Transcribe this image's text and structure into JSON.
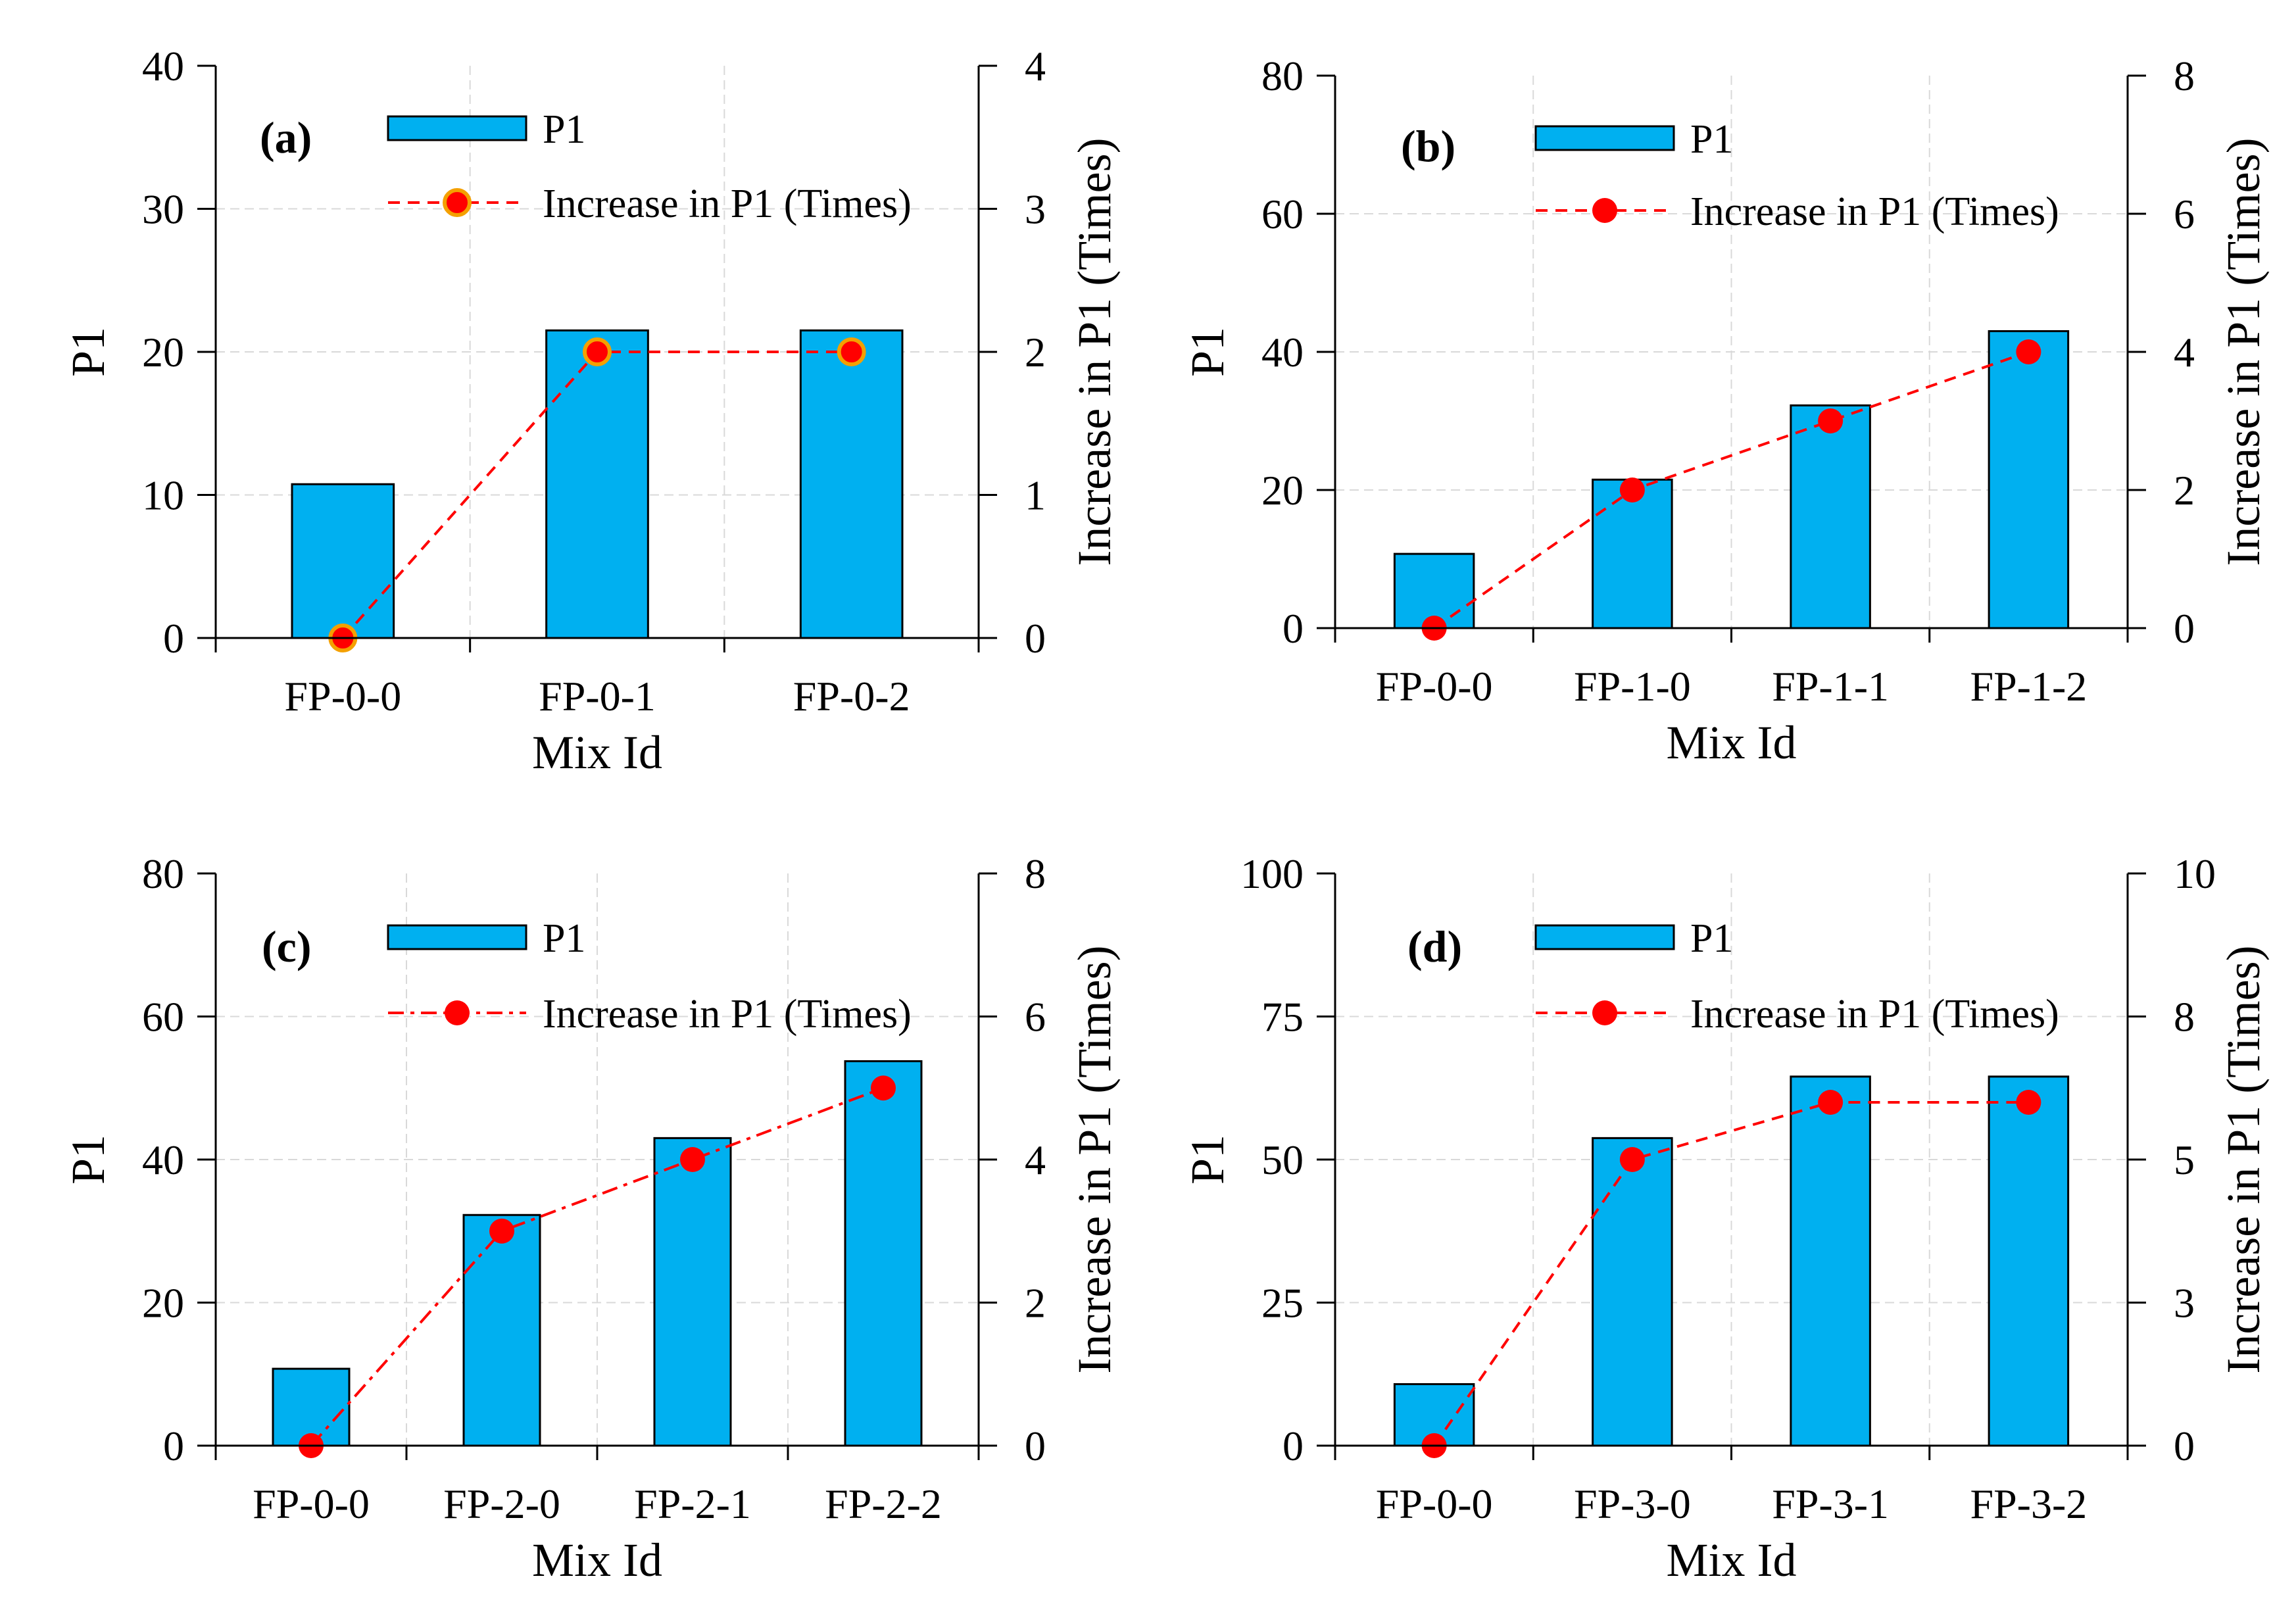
{
  "colors": {
    "bar_fill": "#00b0f0",
    "bar_stroke": "#000000",
    "line": "#ff0000",
    "marker": "#ff0000",
    "marker_edge_a": "#f4a000",
    "grid": "#d9d9d9"
  },
  "chart_data": [
    {
      "type": "bar",
      "panel_label": "(a)",
      "categories": [
        "FP-0-0",
        "FP-0-1",
        "FP-0-2"
      ],
      "series": [
        {
          "name": "P1",
          "kind": "bar",
          "axis": "left",
          "values": [
            10.75,
            21.5,
            21.5
          ]
        },
        {
          "name": "Increase in P1 (Times)",
          "kind": "line",
          "axis": "right",
          "style": "dashed",
          "values": [
            0,
            2,
            2
          ]
        }
      ],
      "xlabel": "Mix Id",
      "ylabel": "P1",
      "y2label": "Increase in P1 (Times)",
      "ylim": [
        0,
        40
      ],
      "yticks": [
        "0",
        "10",
        "20",
        "30",
        "40"
      ],
      "y2lim": [
        0,
        4
      ],
      "y2ticks": [
        "0",
        "1",
        "2",
        "3",
        "4"
      ],
      "legend": [
        "P1",
        "Increase in P1 (Times)"
      ]
    },
    {
      "type": "bar",
      "panel_label": "(b)",
      "categories": [
        "FP-0-0",
        "FP-1-0",
        "FP-1-1",
        "FP-1-2"
      ],
      "series": [
        {
          "name": "P1",
          "kind": "bar",
          "axis": "left",
          "values": [
            10.75,
            21.5,
            32.25,
            43
          ]
        },
        {
          "name": "Increase in P1 (Times)",
          "kind": "line",
          "axis": "right",
          "style": "dashed",
          "values": [
            0,
            2,
            3,
            4
          ]
        }
      ],
      "xlabel": "Mix Id",
      "ylabel": "P1",
      "y2label": "Increase in P1 (Times)",
      "ylim": [
        0,
        80
      ],
      "yticks": [
        "0",
        "20",
        "40",
        "60",
        "80"
      ],
      "y2lim": [
        0,
        8
      ],
      "y2ticks": [
        "0",
        "2",
        "4",
        "6",
        "8"
      ],
      "legend": [
        "P1",
        "Increase in P1 (Times)"
      ]
    },
    {
      "type": "bar",
      "panel_label": "(c)",
      "categories": [
        "FP-0-0",
        "FP-2-0",
        "FP-2-1",
        "FP-2-2"
      ],
      "series": [
        {
          "name": "P1",
          "kind": "bar",
          "axis": "left",
          "values": [
            10.75,
            32.25,
            43,
            53.75
          ]
        },
        {
          "name": "Increase in P1 (Times)",
          "kind": "line",
          "axis": "right",
          "style": "dash-dot",
          "values": [
            0,
            3,
            4,
            5
          ]
        }
      ],
      "xlabel": "Mix Id",
      "ylabel": "P1",
      "y2label": "Increase in P1 (Times)",
      "ylim": [
        0,
        80
      ],
      "yticks": [
        "0",
        "20",
        "40",
        "60",
        "80"
      ],
      "y2lim": [
        0,
        8
      ],
      "y2ticks": [
        "0",
        "2",
        "4",
        "6",
        "8"
      ],
      "legend": [
        "P1",
        "Increase in P1 (Times)"
      ]
    },
    {
      "type": "bar",
      "panel_label": "(d)",
      "categories": [
        "FP-0-0",
        "FP-3-0",
        "FP-3-1",
        "FP-3-2"
      ],
      "series": [
        {
          "name": "P1",
          "kind": "bar",
          "axis": "left",
          "values": [
            10.75,
            53.75,
            64.5,
            64.5
          ]
        },
        {
          "name": "Increase in P1 (Times)",
          "kind": "line",
          "axis": "right",
          "style": "dashed",
          "values": [
            0,
            5,
            6,
            6
          ]
        }
      ],
      "xlabel": "Mix Id",
      "ylabel": "P1",
      "y2label": "Increase in P1 (Times)",
      "ylim": [
        0,
        100
      ],
      "yticks": [
        "0",
        "25",
        "50",
        "75",
        "100"
      ],
      "y2lim": [
        0,
        10
      ],
      "y2ticks": [
        "0",
        "3",
        "5",
        "8",
        "10"
      ],
      "legend": [
        "P1",
        "Increase in P1 (Times)"
      ]
    }
  ]
}
